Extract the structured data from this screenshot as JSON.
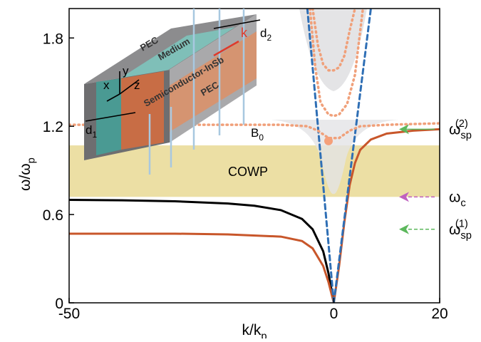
{
  "chart_data": {
    "type": "line",
    "xlabel": {
      "base": "k/k",
      "sub": "p"
    },
    "ylabel": {
      "base": "ω/ω",
      "sub": "p"
    },
    "xlim": [
      -50,
      20
    ],
    "ylim": [
      0,
      2.0
    ],
    "xticks": [
      -50,
      0,
      20
    ],
    "yticks": [
      0,
      0.6,
      1.2,
      1.8
    ],
    "band": {
      "label": "COWP",
      "ymin": 0.72,
      "ymax": 1.07,
      "color": "#ecdfa4"
    },
    "series": [
      {
        "color": "#000000",
        "style": "solid",
        "x": [
          -50,
          -40,
          -30,
          -20,
          -15,
          -10,
          -6,
          -4,
          -2,
          -1,
          0
        ],
        "y": [
          0.7,
          0.697,
          0.69,
          0.675,
          0.66,
          0.63,
          0.57,
          0.5,
          0.35,
          0.2,
          0
        ]
      },
      {
        "color": "#c8562a",
        "style": "solid",
        "x": [
          -50,
          -30,
          -20,
          -10,
          -6,
          -4,
          -2,
          -1,
          0
        ],
        "y": [
          0.47,
          0.47,
          0.465,
          0.45,
          0.42,
          0.37,
          0.25,
          0.14,
          0
        ]
      },
      {
        "color": "#c8562a",
        "style": "solid",
        "x": [
          0,
          1,
          2,
          3,
          4,
          5,
          7,
          10,
          15,
          20
        ],
        "y": [
          0,
          0.25,
          0.55,
          0.8,
          0.95,
          1.04,
          1.11,
          1.15,
          1.17,
          1.18
        ]
      },
      {
        "color": "#2f6fb5",
        "style": "dashed",
        "x": [
          0,
          -5
        ],
        "y": [
          0,
          2.0
        ]
      },
      {
        "color": "#2f6fb5",
        "style": "dashed",
        "x": [
          0,
          7
        ],
        "y": [
          0,
          2.0
        ]
      },
      {
        "color": "#f0a07a",
        "style": "dotted",
        "x": [
          -50,
          -10,
          -5,
          -3,
          -1,
          1,
          3,
          5,
          10,
          20
        ],
        "y": [
          1.21,
          1.21,
          1.2,
          1.17,
          1.12,
          1.12,
          1.17,
          1.2,
          1.21,
          1.22
        ]
      },
      {
        "color": "#f0a07a",
        "style": "dotted",
        "x": [
          -4.5,
          -3.5,
          -2.5,
          -1,
          0,
          1,
          2.5,
          4,
          5.5
        ],
        "y": [
          2.0,
          1.6,
          1.36,
          1.28,
          1.27,
          1.28,
          1.35,
          1.55,
          2.0
        ]
      },
      {
        "color": "#f0a07a",
        "style": "dotted",
        "x": [
          -4,
          -3,
          -2,
          -1,
          0,
          1,
          2,
          3,
          4
        ],
        "y": [
          2.0,
          1.75,
          1.62,
          1.58,
          1.58,
          1.6,
          1.68,
          1.85,
          2.0
        ]
      }
    ],
    "point": {
      "x": -1,
      "y": 1.1,
      "color": "#f5a07a"
    },
    "markers": [
      {
        "label": {
          "base": "ω",
          "sub": "sp",
          "sup": "(2)"
        },
        "y": 1.18,
        "color": "#5cb85c",
        "dashed": false
      },
      {
        "label": {
          "base": "ω",
          "sub": "c"
        },
        "y": 0.72,
        "color": "#c060c0",
        "dashed": true
      },
      {
        "label": {
          "base": "ω",
          "sub": "sp",
          "sup": "(1)"
        },
        "y": 0.5,
        "color": "#5cb85c",
        "dashed": true
      }
    ],
    "inset": {
      "pec_top": "PEC",
      "medium": "Medium",
      "semiconductor": "Semiconductor-InSb",
      "pec_bottom": "PEC",
      "k": "k",
      "x": "x",
      "y": "y",
      "z": "z",
      "d1": {
        "base": "d",
        "sub": "1"
      },
      "d2": {
        "base": "d",
        "sub": "2"
      },
      "b0": {
        "base": "B",
        "sub": "0"
      }
    }
  }
}
